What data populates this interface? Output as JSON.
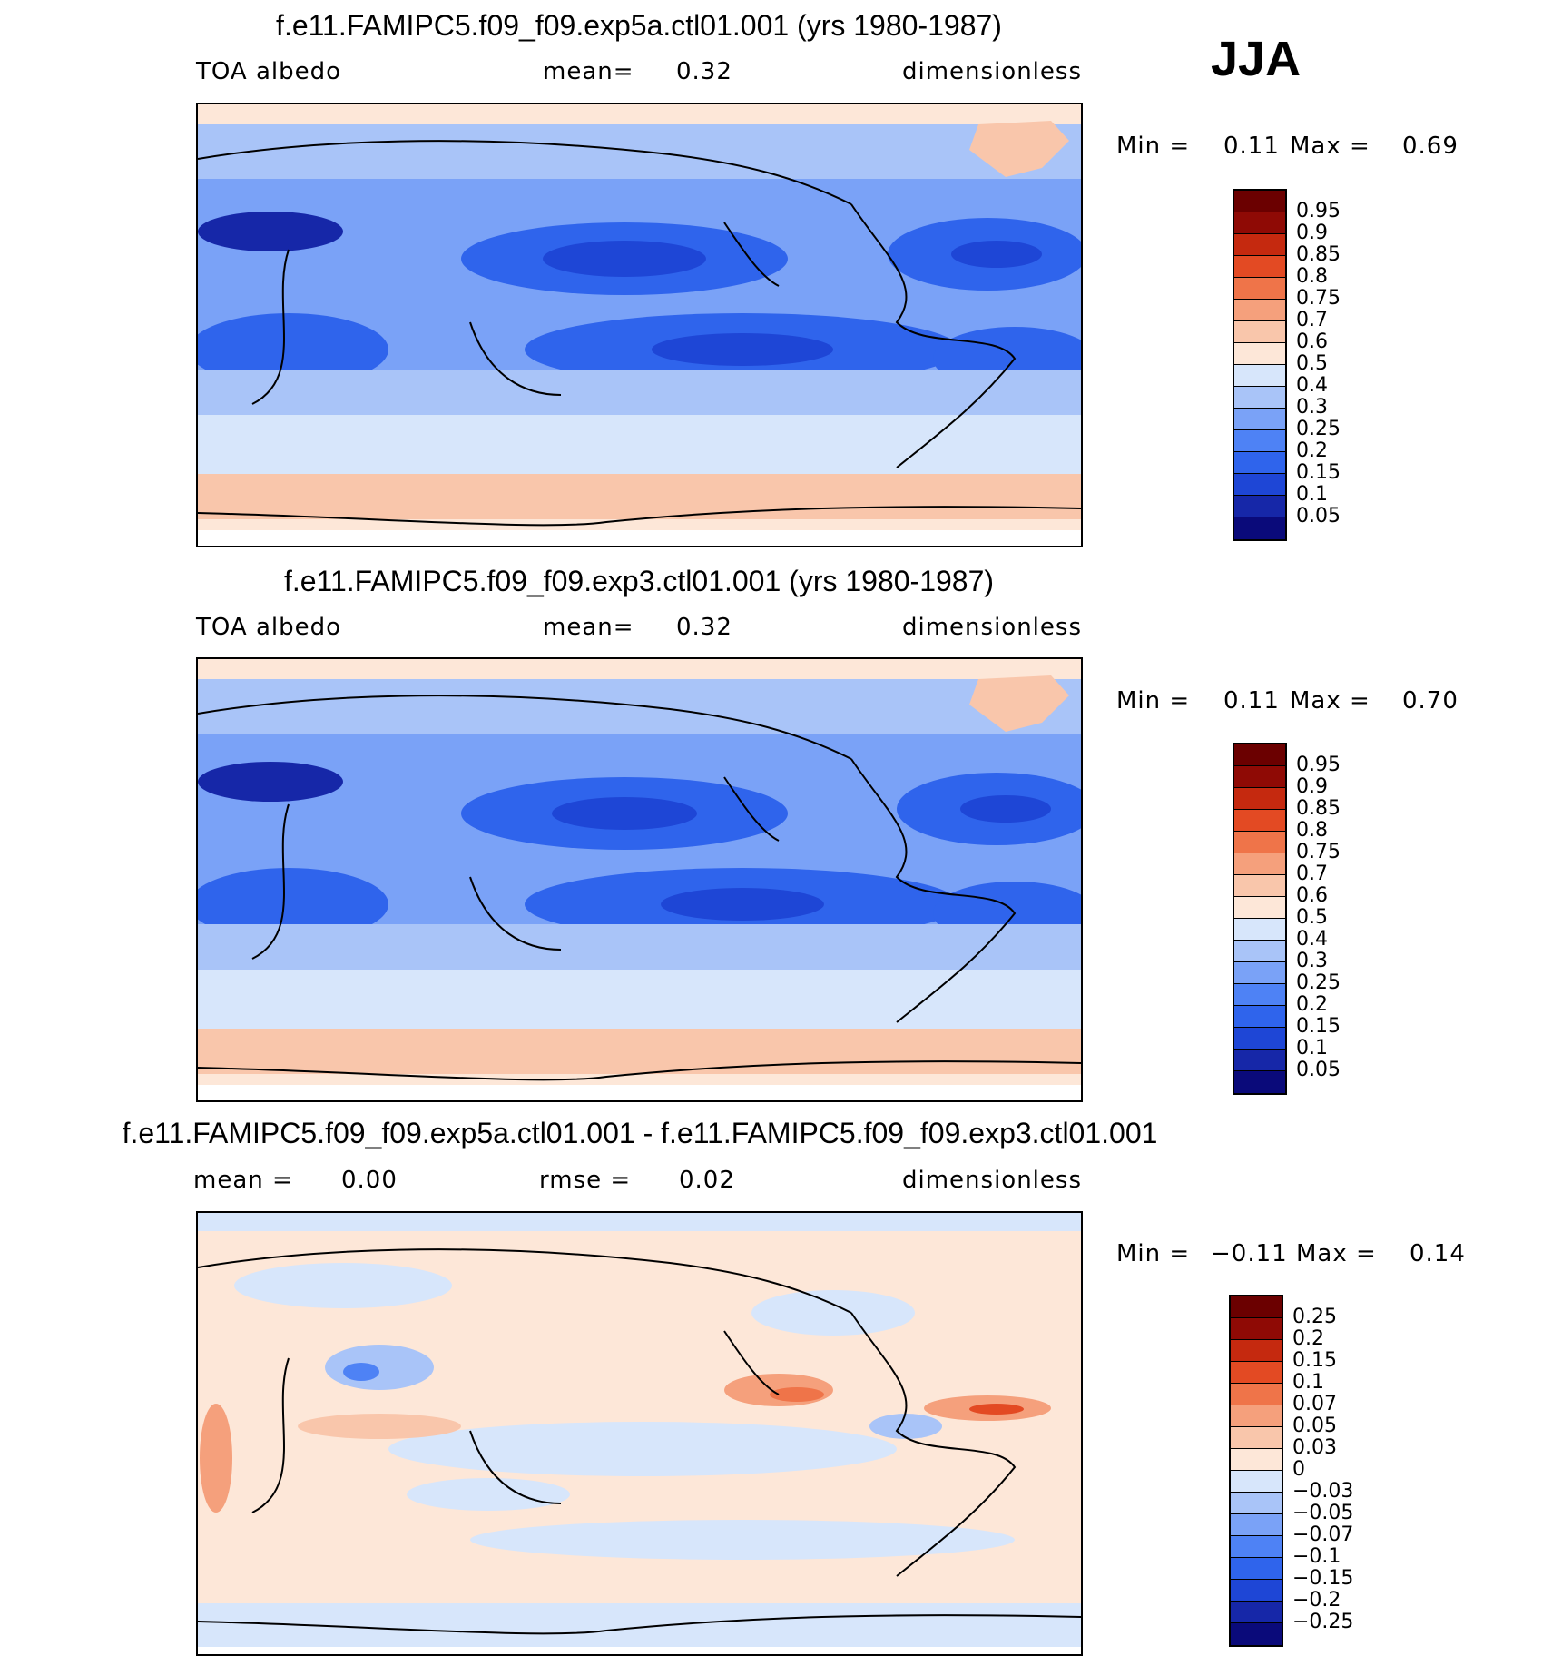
{
  "season": "JJA",
  "panels": [
    {
      "title": "f.e11.FAMIPC5.f09_f09.exp5a.ctl01.001 (yrs 1980-1987)",
      "left_label": "TOA albedo",
      "center_label": "mean=",
      "center_value": "0.32",
      "right_label": "dimensionless",
      "min_label": "Min =",
      "min_value": "0.11",
      "max_label": "Max =",
      "max_value": "0.69",
      "colorbar_labels": [
        "0.95",
        "0.9",
        "0.85",
        "0.8",
        "0.75",
        "0.7",
        "0.6",
        "0.5",
        "0.4",
        "0.3",
        "0.25",
        "0.2",
        "0.15",
        "0.1",
        "0.05"
      ]
    },
    {
      "title": "f.e11.FAMIPC5.f09_f09.exp3.ctl01.001 (yrs 1980-1987)",
      "left_label": "TOA albedo",
      "center_label": "mean=",
      "center_value": "0.32",
      "right_label": "dimensionless",
      "min_label": "Min =",
      "min_value": "0.11",
      "max_label": "Max =",
      "max_value": "0.70",
      "colorbar_labels": [
        "0.95",
        "0.9",
        "0.85",
        "0.8",
        "0.75",
        "0.7",
        "0.6",
        "0.5",
        "0.4",
        "0.3",
        "0.25",
        "0.2",
        "0.15",
        "0.1",
        "0.05"
      ]
    },
    {
      "title": "f.e11.FAMIPC5.f09_f09.exp5a.ctl01.001 - f.e11.FAMIPC5.f09_f09.exp3.ctl01.001",
      "left_label": "mean =",
      "left_value": "0.00",
      "center_label": "rmse =",
      "center_value": "0.02",
      "right_label": "dimensionless",
      "min_label": "Min =",
      "min_value": "−0.11",
      "max_label": "Max =",
      "max_value": "0.14",
      "colorbar_labels": [
        "0.25",
        "0.2",
        "0.15",
        "0.1",
        "0.07",
        "0.05",
        "0.03",
        "0",
        "−0.03",
        "−0.05",
        "−0.07",
        "−0.1",
        "−0.15",
        "−0.2",
        "−0.25"
      ]
    }
  ],
  "colors": {
    "field_scale": [
      "#0a0a7a",
      "#1627a8",
      "#1e46d6",
      "#2f64ec",
      "#4e82f5",
      "#7aa2f7",
      "#a9c4f8",
      "#d7e6fb",
      "#fde7d8",
      "#f9c6ab",
      "#f5a07c",
      "#ef7449",
      "#e34a23",
      "#c5290f",
      "#8f0a05",
      "#6b0000"
    ],
    "diff_scale": [
      "#0a0a7a",
      "#1627a8",
      "#1e46d6",
      "#2f64ec",
      "#4e82f5",
      "#7aa2f7",
      "#a9c4f8",
      "#d7e6fb",
      "#fde7d8",
      "#f9c6ab",
      "#f5a07c",
      "#ef7449",
      "#e34a23",
      "#c5290f",
      "#8f0a05",
      "#6b0000"
    ]
  }
}
